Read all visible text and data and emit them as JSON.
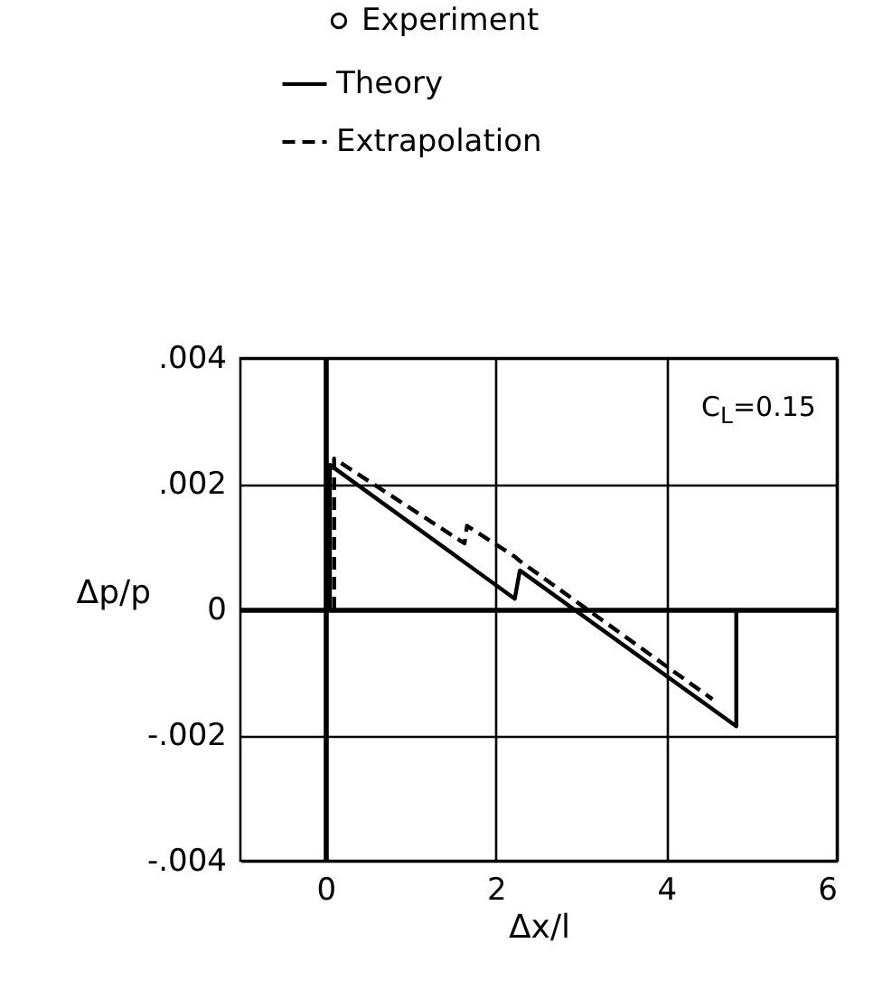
{
  "chart_data": {
    "type": "line",
    "xlabel": "Δx/l",
    "ylabel": "Δp/p",
    "xlim": [
      -1,
      6
    ],
    "xticks": [
      0,
      2,
      4,
      6
    ],
    "ylim": [
      -0.004,
      0.004
    ],
    "yticks": [
      {
        "value": -0.004,
        "label": "-.004"
      },
      {
        "value": -0.002,
        "label": "-.002"
      },
      0,
      {
        "value": 0.002,
        "label": ".002"
      },
      {
        "value": 0.004,
        "label": ".004"
      }
    ],
    "grid": true,
    "legend": "top",
    "annotations": [
      "C$_{L}$=0.15"
    ],
    "series": [
      {
        "name": "Experiment",
        "type": "scatter",
        "marker": "circle",
        "color": "#000000"
      },
      {
        "name": "Theory",
        "color": "#000000",
        "line_style": "solid",
        "x": [
          0.05,
          0.05,
          2.22,
          2.28,
          4.82,
          4.82
        ],
        "values": [
          0,
          0.0023,
          0.00017,
          0.00062,
          -0.00186,
          0
        ]
      },
      {
        "name": "Extrapolation",
        "color": "#000000",
        "line_style": "dashed",
        "x": [
          0.1,
          0.1,
          1.63,
          1.66,
          2.22,
          2.28,
          4.54
        ],
        "values": [
          0,
          0.0024,
          0.00105,
          0.00133,
          0.00084,
          0.00077,
          -0.00143
        ]
      }
    ]
  }
}
